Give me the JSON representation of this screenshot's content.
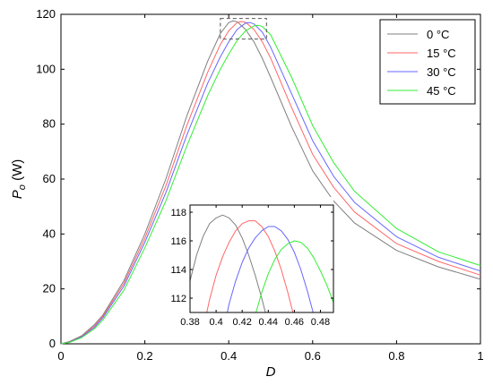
{
  "chart_data": [
    {
      "type": "line",
      "xlabel": "D",
      "ylabel_main": "P",
      "ylabel_sub": "o",
      "ylabel_unit": " (W)",
      "xlim": [
        0,
        1
      ],
      "ylim": [
        0,
        120
      ],
      "xticks": [
        0,
        0.2,
        0.4,
        0.6,
        0.8,
        1
      ],
      "xtick_labels": [
        "0",
        "0.2",
        "0.4",
        "0.6",
        "0.8",
        "1"
      ],
      "yticks": [
        0,
        20,
        40,
        60,
        80,
        100,
        120
      ],
      "ytick_labels": [
        "0",
        "20",
        "40",
        "60",
        "80",
        "100",
        "120"
      ],
      "grid": false,
      "legend_position": "top-right",
      "highlight_box": {
        "x": [
          0.38,
          0.49
        ],
        "y": [
          111,
          118.5
        ]
      },
      "series": [
        {
          "name": "0 °C",
          "color": "#7f7f7f",
          "x": [
            0,
            0.02,
            0.05,
            0.08,
            0.1,
            0.15,
            0.2,
            0.25,
            0.3,
            0.35,
            0.38,
            0.4,
            0.41,
            0.42,
            0.44,
            0.46,
            0.48,
            0.5,
            0.55,
            0.6,
            0.65,
            0.7,
            0.8,
            0.9,
            1.0
          ],
          "y": [
            0,
            0.8,
            3,
            7,
            10.5,
            23,
            40,
            60,
            83,
            103,
            113,
            117,
            117.6,
            117.3,
            114.5,
            110,
            104,
            97,
            79,
            63,
            52,
            44,
            34,
            28,
            23.5
          ]
        },
        {
          "name": "15 °C",
          "color": "#ff6666",
          "x": [
            0,
            0.02,
            0.05,
            0.08,
            0.1,
            0.15,
            0.2,
            0.25,
            0.3,
            0.35,
            0.38,
            0.4,
            0.42,
            0.43,
            0.44,
            0.46,
            0.48,
            0.5,
            0.55,
            0.6,
            0.65,
            0.7,
            0.8,
            0.9,
            1.0
          ],
          "y": [
            0,
            0.7,
            2.8,
            6.5,
            10,
            22,
            38.5,
            57.5,
            79.5,
            99,
            109,
            114,
            117,
            117.4,
            117.1,
            114.5,
            110,
            104,
            86,
            69,
            57,
            48,
            36.5,
            30,
            25
          ]
        },
        {
          "name": "30 °C",
          "color": "#6666ff",
          "x": [
            0,
            0.02,
            0.05,
            0.08,
            0.1,
            0.15,
            0.2,
            0.25,
            0.3,
            0.35,
            0.38,
            0.4,
            0.42,
            0.44,
            0.45,
            0.46,
            0.48,
            0.5,
            0.55,
            0.6,
            0.65,
            0.7,
            0.8,
            0.9,
            1.0
          ],
          "y": [
            0,
            0.6,
            2.6,
            6,
            9.5,
            21,
            37,
            55,
            76,
            95,
            104.5,
            110,
            114.5,
            116.8,
            117,
            116.5,
            113.5,
            108,
            91,
            74,
            61,
            51.5,
            39,
            31.5,
            26.5
          ]
        },
        {
          "name": "45 °C",
          "color": "#33ee33",
          "x": [
            0,
            0.02,
            0.05,
            0.08,
            0.1,
            0.15,
            0.2,
            0.25,
            0.3,
            0.35,
            0.38,
            0.4,
            0.42,
            0.44,
            0.46,
            0.47,
            0.48,
            0.5,
            0.55,
            0.6,
            0.65,
            0.7,
            0.8,
            0.9,
            1.0
          ],
          "y": [
            0,
            0.5,
            2.3,
            5.5,
            8.7,
            19.5,
            35,
            52,
            72,
            90.5,
            100,
            105.5,
            110.5,
            114,
            115.8,
            116,
            115.6,
            112.5,
            97,
            79.5,
            66,
            55.5,
            42,
            33.5,
            28.5
          ]
        }
      ]
    },
    {
      "type": "line",
      "role": "inset",
      "xlim": [
        0.38,
        0.49
      ],
      "ylim": [
        111,
        118.5
      ],
      "xticks": [
        0.38,
        0.4,
        0.42,
        0.44,
        0.46,
        0.48
      ],
      "xtick_labels": [
        "0.38",
        "0.4",
        "0.42",
        "0.44",
        "0.46",
        "0.48"
      ],
      "yticks": [
        112,
        114,
        116,
        118
      ],
      "ytick_labels": [
        "112",
        "114",
        "116",
        "118"
      ],
      "series": [
        {
          "name": "0 °C",
          "color": "#7f7f7f",
          "x": [
            0.38,
            0.385,
            0.39,
            0.395,
            0.4,
            0.405,
            0.41,
            0.415,
            0.42,
            0.425,
            0.43,
            0.435,
            0.44,
            0.445
          ],
          "y": [
            113.2,
            115.0,
            116.3,
            117.2,
            117.6,
            117.8,
            117.6,
            117.1,
            116.2,
            115.0,
            113.6,
            112.0,
            110.2,
            108.4
          ]
        },
        {
          "name": "15 °C",
          "color": "#ff6666",
          "x": [
            0.39,
            0.395,
            0.4,
            0.405,
            0.41,
            0.415,
            0.42,
            0.425,
            0.43,
            0.435,
            0.44,
            0.445,
            0.45,
            0.455,
            0.46
          ],
          "y": [
            109.8,
            111.9,
            113.6,
            114.9,
            115.9,
            116.7,
            117.2,
            117.4,
            117.4,
            117.0,
            116.3,
            115.3,
            114.0,
            112.4,
            110.6
          ]
        },
        {
          "name": "30 °C",
          "color": "#6666ff",
          "x": [
            0.405,
            0.41,
            0.415,
            0.42,
            0.425,
            0.43,
            0.435,
            0.44,
            0.445,
            0.45,
            0.455,
            0.46,
            0.465,
            0.47,
            0.475
          ],
          "y": [
            109.5,
            111.6,
            113.2,
            114.5,
            115.5,
            116.2,
            116.7,
            117.0,
            117.0,
            116.7,
            116.1,
            115.2,
            114.0,
            112.5,
            110.8
          ]
        },
        {
          "name": "45 °C",
          "color": "#33ee33",
          "x": [
            0.425,
            0.43,
            0.435,
            0.44,
            0.445,
            0.45,
            0.455,
            0.46,
            0.465,
            0.47,
            0.475,
            0.48,
            0.485,
            0.49
          ],
          "y": [
            108.8,
            110.8,
            112.4,
            113.7,
            114.7,
            115.4,
            115.8,
            116.0,
            115.9,
            115.5,
            114.8,
            113.9,
            112.9,
            111.7
          ]
        }
      ]
    }
  ]
}
